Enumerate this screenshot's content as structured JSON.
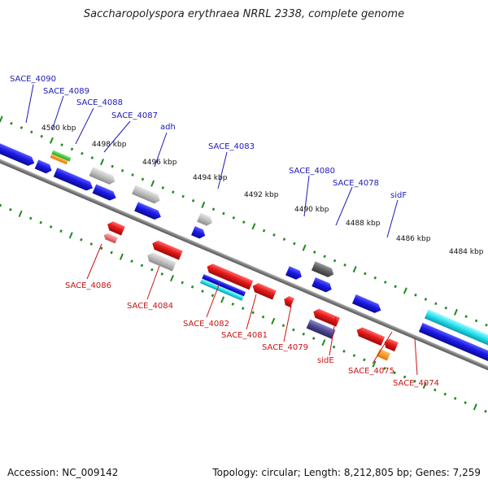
{
  "title": "Saccharopolyspora erythraea NRRL 2338, complete genome",
  "footer": {
    "accession": "Accession: NC_009142",
    "summary": "Topology: circular; Length: 8,212,805 bp; Genes: 7,259"
  },
  "ticks": [
    "4500 kbp",
    "4498 kbp",
    "4496 kbp",
    "4494 kbp",
    "4492 kbp",
    "4490 kbp",
    "4488 kbp",
    "4486 kbp",
    "4484 kbp"
  ],
  "labels_upper": [
    "SACE_4090",
    "SACE_4089",
    "SACE_4088",
    "SACE_4087",
    "adh",
    "SACE_4083",
    "SACE_4080",
    "SACE_4078",
    "sidF"
  ],
  "labels_lower": [
    "SACE_4086",
    "SACE_4084",
    "SACE_4082",
    "SACE_4081",
    "SACE_4079",
    "sidE",
    "SACE_4075",
    "SACE_4074"
  ],
  "colors": {
    "forward_gene": "#1a1ae6",
    "reverse_gene": "#e61a1a",
    "pseudo_gene": "#b8b8b8",
    "upper_label": "#1a1ab8",
    "lower_label": "#c81414",
    "tick": "#1f8a1f",
    "backbone": "#8a8a8a"
  }
}
